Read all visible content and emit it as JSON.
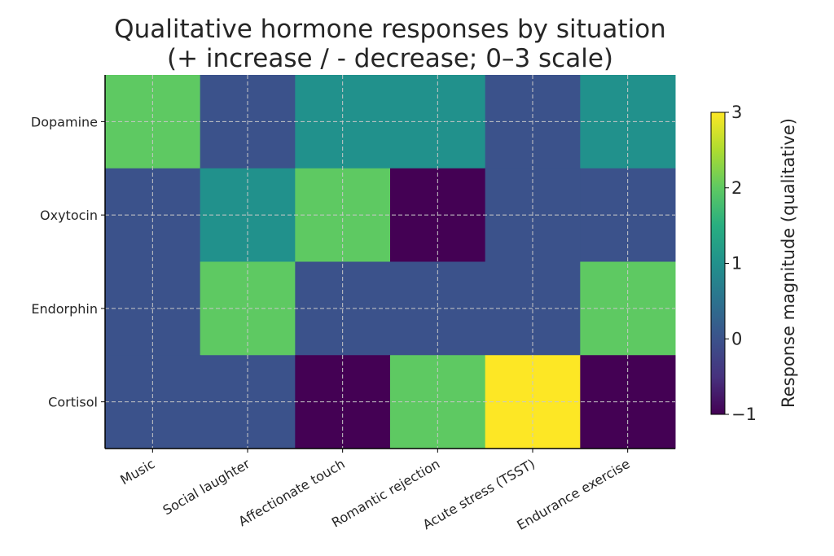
{
  "chart_data": {
    "type": "heatmap",
    "title": "Qualitative hormone responses by situation",
    "subtitle": "(+ increase / - decrease; 0–3 scale)",
    "x_categories": [
      "Music",
      "Social laughter",
      "Affectionate touch",
      "Romantic rejection",
      "Acute stress (TSST)",
      "Endurance exercise"
    ],
    "y_categories": [
      "Dopamine",
      "Oxytocin",
      "Endorphin",
      "Cortisol"
    ],
    "values": [
      [
        2,
        0,
        1,
        1,
        0,
        1
      ],
      [
        0,
        1,
        2,
        -1,
        0,
        0
      ],
      [
        0,
        2,
        0,
        0,
        0,
        2
      ],
      [
        0,
        0,
        -1,
        2,
        3,
        -1
      ]
    ],
    "colorbar": {
      "label": "Response magnitude (qualitative)",
      "range": [
        -1,
        3
      ],
      "ticks": [
        "3",
        "2",
        "1",
        "0",
        "−1"
      ]
    },
    "colors": {
      "-1": "#440154",
      "0": "#3b528b",
      "1": "#21918c",
      "2": "#5ec962",
      "3": "#fde725"
    },
    "grid": true
  }
}
